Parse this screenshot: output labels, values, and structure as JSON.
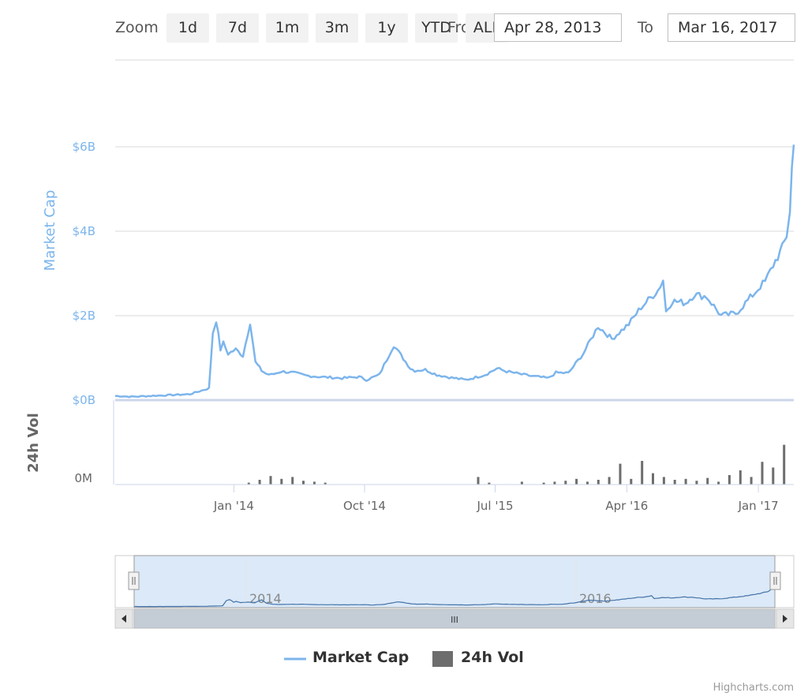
{
  "toolbar": {
    "zoom_label": "Zoom",
    "buttons": [
      "1d",
      "7d",
      "1m",
      "3m",
      "1y",
      "YTD",
      "ALL"
    ],
    "from_label": "From",
    "from_value": "Apr 28, 2013",
    "to_label": "To",
    "to_value": "Mar 16, 2017"
  },
  "chart_data": {
    "type": "line",
    "title": "",
    "x_tick_labels": [
      "Jan '14",
      "Oct '14",
      "Jul '15",
      "Apr '16",
      "Jan '17"
    ],
    "y_axis_market_cap": {
      "label": "Market Cap",
      "ticks": [
        "$0B",
        "$2B",
        "$4B",
        "$6B"
      ],
      "ylim": [
        0,
        6.5
      ],
      "color": "#7cb5ec"
    },
    "y_axis_volume": {
      "label": "24h Vol",
      "ticks": [
        "0M"
      ],
      "color": "#6d6d6d"
    },
    "series": [
      {
        "name": "Market Cap",
        "color": "#7cb5ec",
        "x": [
          "2013-04-28",
          "2013-06-01",
          "2013-08-01",
          "2013-10-01",
          "2013-11-10",
          "2013-11-18",
          "2013-11-25",
          "2013-12-04",
          "2013-12-10",
          "2013-12-20",
          "2014-01-05",
          "2014-01-20",
          "2014-02-04",
          "2014-02-15",
          "2014-02-28",
          "2014-03-10",
          "2014-03-20",
          "2014-04-10",
          "2014-05-05",
          "2014-06-01",
          "2014-07-01",
          "2014-08-15",
          "2014-09-20",
          "2014-10-05",
          "2014-11-01",
          "2014-12-01",
          "2015-01-05",
          "2015-01-14",
          "2015-02-05",
          "2015-03-01",
          "2015-04-01",
          "2015-05-01",
          "2015-06-10",
          "2015-07-05",
          "2015-07-25",
          "2015-08-20",
          "2015-09-15",
          "2015-10-20",
          "2015-11-05",
          "2015-12-01",
          "2016-01-01",
          "2016-02-01",
          "2016-03-01",
          "2016-04-05",
          "2016-05-01",
          "2016-06-05",
          "2016-06-16",
          "2016-06-22",
          "2016-07-05",
          "2016-08-02",
          "2016-08-20",
          "2016-09-15",
          "2016-10-15",
          "2016-11-15",
          "2016-12-05",
          "2016-12-25",
          "2017-01-05",
          "2017-01-15",
          "2017-02-01",
          "2017-02-20",
          "2017-03-01",
          "2017-03-08",
          "2017-03-12",
          "2017-03-16"
        ],
        "values": [
          0.1,
          0.08,
          0.11,
          0.14,
          0.28,
          1.6,
          1.9,
          1.2,
          1.35,
          1.1,
          1.2,
          1.05,
          1.85,
          0.9,
          0.7,
          0.62,
          0.6,
          0.68,
          0.65,
          0.58,
          0.55,
          0.52,
          0.55,
          0.48,
          0.6,
          1.3,
          0.75,
          0.7,
          0.72,
          0.6,
          0.53,
          0.48,
          0.6,
          0.75,
          0.68,
          0.62,
          0.57,
          0.52,
          0.65,
          0.64,
          1.1,
          1.75,
          1.45,
          1.8,
          2.2,
          2.6,
          2.85,
          2.1,
          2.35,
          2.3,
          2.5,
          2.45,
          2.0,
          2.05,
          2.3,
          2.55,
          2.7,
          2.8,
          3.2,
          3.6,
          3.9,
          4.5,
          5.5,
          6.05
        ]
      },
      {
        "name": "24h Vol",
        "color": "#6d6d6d"
      }
    ],
    "volume_values": [
      0,
      0,
      0.02,
      0.05,
      0.09,
      0.06,
      0.08,
      0.04,
      0.03,
      0.02,
      0,
      0,
      0,
      0,
      0,
      0,
      0,
      0,
      0,
      0,
      0,
      0,
      0,
      0.08,
      0.02,
      0,
      0,
      0.03,
      0,
      0.02,
      0.03,
      0.04,
      0.06,
      0.03,
      0.05,
      0.08,
      0.22,
      0.06,
      0.25,
      0.12,
      0.08,
      0.05,
      0.06,
      0.04,
      0.07,
      0.03,
      0.1,
      0.15,
      0.08,
      0.24,
      0.18,
      0.42
    ],
    "volume_start": "2013-12-15",
    "legend_position": "bottom-center",
    "navigator_labels": [
      "2014",
      "2016"
    ]
  },
  "legend": {
    "items": [
      {
        "label": "Market Cap",
        "color": "#7cb5ec"
      },
      {
        "label": "24h Vol",
        "color": "#6d6d6d"
      }
    ]
  },
  "navigator": {
    "grip_symbol": "III"
  },
  "credit": "Highcharts.com"
}
